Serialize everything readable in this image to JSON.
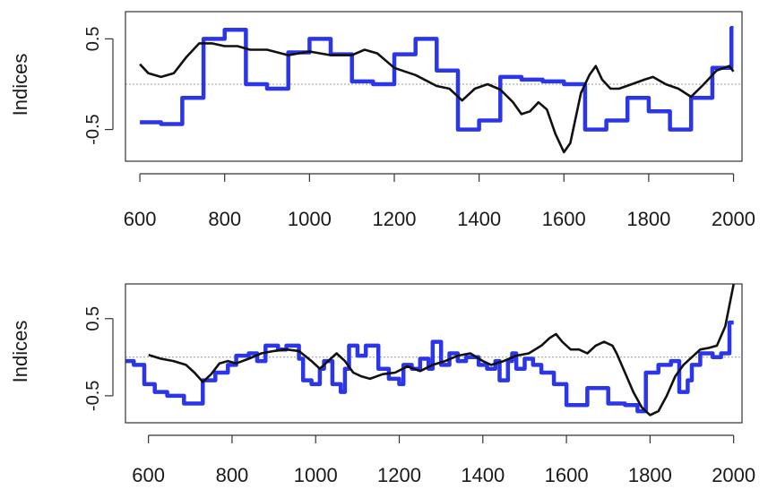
{
  "colors": {
    "blue_series": "#2b35ea",
    "black_series": "#111111",
    "zero_line": "#9a9a9a",
    "frame": "#333333"
  },
  "chart_data": [
    {
      "type": "line",
      "ylabel": "Indices",
      "xlim": [
        566,
        2020
      ],
      "ylim": [
        -0.85,
        0.8
      ],
      "x_ticks": [
        600,
        800,
        1000,
        1200,
        1400,
        1600,
        1800,
        2000
      ],
      "y_ticks": [
        -0.5,
        0.5
      ],
      "y_tick_labels": [
        "-0.5",
        "0.5"
      ],
      "zero_line": true,
      "grid": false,
      "series": [
        {
          "style": "step",
          "color": "#2b35ea",
          "points": [
            [
              600,
              -0.42
            ],
            [
              650,
              -0.44
            ],
            [
              700,
              -0.15
            ],
            [
              750,
              0.5
            ],
            [
              800,
              0.6
            ],
            [
              850,
              0.0
            ],
            [
              900,
              -0.05
            ],
            [
              950,
              0.35
            ],
            [
              1000,
              0.5
            ],
            [
              1050,
              0.33
            ],
            [
              1100,
              0.03
            ],
            [
              1150,
              0.0
            ],
            [
              1200,
              0.33
            ],
            [
              1250,
              0.5
            ],
            [
              1300,
              0.15
            ],
            [
              1350,
              -0.5
            ],
            [
              1400,
              -0.4
            ],
            [
              1450,
              0.08
            ],
            [
              1500,
              0.05
            ],
            [
              1550,
              0.03
            ],
            [
              1600,
              0.0
            ],
            [
              1650,
              -0.5
            ],
            [
              1700,
              -0.4
            ],
            [
              1750,
              -0.15
            ],
            [
              1800,
              -0.3
            ],
            [
              1850,
              -0.5
            ],
            [
              1900,
              -0.15
            ],
            [
              1950,
              0.18
            ],
            [
              1995,
              0.62
            ],
            [
              2000,
              0.62
            ]
          ]
        },
        {
          "style": "smooth",
          "color": "#111111",
          "points": [
            [
              600,
              0.22
            ],
            [
              620,
              0.12
            ],
            [
              650,
              0.08
            ],
            [
              680,
              0.12
            ],
            [
              710,
              0.3
            ],
            [
              740,
              0.45
            ],
            [
              770,
              0.45
            ],
            [
              800,
              0.42
            ],
            [
              830,
              0.42
            ],
            [
              860,
              0.38
            ],
            [
              900,
              0.38
            ],
            [
              950,
              0.32
            ],
            [
              1000,
              0.36
            ],
            [
              1050,
              0.32
            ],
            [
              1100,
              0.32
            ],
            [
              1130,
              0.38
            ],
            [
              1160,
              0.34
            ],
            [
              1200,
              0.18
            ],
            [
              1250,
              0.1
            ],
            [
              1300,
              -0.02
            ],
            [
              1330,
              -0.05
            ],
            [
              1360,
              -0.18
            ],
            [
              1390,
              -0.05
            ],
            [
              1420,
              0.0
            ],
            [
              1450,
              -0.06
            ],
            [
              1480,
              -0.2
            ],
            [
              1500,
              -0.33
            ],
            [
              1520,
              -0.3
            ],
            [
              1540,
              -0.2
            ],
            [
              1560,
              -0.28
            ],
            [
              1580,
              -0.55
            ],
            [
              1600,
              -0.75
            ],
            [
              1615,
              -0.65
            ],
            [
              1640,
              -0.1
            ],
            [
              1660,
              0.1
            ],
            [
              1675,
              0.2
            ],
            [
              1690,
              0.05
            ],
            [
              1710,
              -0.05
            ],
            [
              1730,
              -0.05
            ],
            [
              1760,
              0.0
            ],
            [
              1790,
              0.05
            ],
            [
              1810,
              0.08
            ],
            [
              1840,
              0.0
            ],
            [
              1870,
              -0.05
            ],
            [
              1900,
              -0.14
            ],
            [
              1930,
              0.0
            ],
            [
              1960,
              0.15
            ],
            [
              1990,
              0.2
            ],
            [
              2000,
              0.14
            ]
          ]
        }
      ]
    },
    {
      "type": "line",
      "ylabel": "Indices",
      "xlim": [
        545,
        2020
      ],
      "ylim": [
        -0.85,
        0.95
      ],
      "x_ticks": [
        600,
        800,
        1000,
        1200,
        1400,
        1600,
        1800,
        2000
      ],
      "y_ticks": [
        -0.5,
        0.5
      ],
      "y_tick_labels": [
        "-0.5",
        "0.5"
      ],
      "zero_line": true,
      "grid": false,
      "series": [
        {
          "style": "step",
          "color": "#2b35ea",
          "points": [
            [
              545,
              -0.05
            ],
            [
              565,
              -0.1
            ],
            [
              590,
              -0.35
            ],
            [
              615,
              -0.45
            ],
            [
              645,
              -0.5
            ],
            [
              685,
              -0.6
            ],
            [
              730,
              -0.3
            ],
            [
              760,
              -0.2
            ],
            [
              790,
              -0.1
            ],
            [
              810,
              0.02
            ],
            [
              840,
              0.05
            ],
            [
              860,
              -0.05
            ],
            [
              880,
              0.15
            ],
            [
              910,
              0.1
            ],
            [
              930,
              0.15
            ],
            [
              960,
              -0.02
            ],
            [
              970,
              -0.3
            ],
            [
              990,
              -0.35
            ],
            [
              1010,
              -0.15
            ],
            [
              1020,
              -0.05
            ],
            [
              1040,
              -0.35
            ],
            [
              1060,
              -0.45
            ],
            [
              1070,
              -0.15
            ],
            [
              1080,
              0.15
            ],
            [
              1100,
              0.02
            ],
            [
              1120,
              0.15
            ],
            [
              1150,
              -0.15
            ],
            [
              1175,
              -0.28
            ],
            [
              1200,
              -0.35
            ],
            [
              1210,
              -0.1
            ],
            [
              1230,
              -0.15
            ],
            [
              1250,
              -0.02
            ],
            [
              1270,
              -0.15
            ],
            [
              1280,
              0.2
            ],
            [
              1300,
              -0.1
            ],
            [
              1320,
              0.05
            ],
            [
              1340,
              -0.05
            ],
            [
              1360,
              0.0
            ],
            [
              1390,
              -0.1
            ],
            [
              1410,
              -0.15
            ],
            [
              1430,
              -0.05
            ],
            [
              1440,
              -0.3
            ],
            [
              1460,
              -0.05
            ],
            [
              1470,
              0.05
            ],
            [
              1480,
              -0.15
            ],
            [
              1500,
              -0.02
            ],
            [
              1520,
              -0.1
            ],
            [
              1540,
              -0.2
            ],
            [
              1570,
              -0.35
            ],
            [
              1600,
              -0.62
            ],
            [
              1650,
              -0.4
            ],
            [
              1700,
              -0.6
            ],
            [
              1740,
              -0.62
            ],
            [
              1770,
              -0.7
            ],
            [
              1790,
              -0.2
            ],
            [
              1820,
              -0.1
            ],
            [
              1850,
              -0.05
            ],
            [
              1870,
              -0.45
            ],
            [
              1890,
              -0.3
            ],
            [
              1900,
              -0.1
            ],
            [
              1920,
              0.05
            ],
            [
              1950,
              0.0
            ],
            [
              1970,
              0.05
            ],
            [
              1990,
              0.45
            ],
            [
              2000,
              0.45
            ]
          ]
        },
        {
          "style": "smooth",
          "color": "#111111",
          "points": [
            [
              600,
              0.03
            ],
            [
              630,
              -0.02
            ],
            [
              660,
              -0.05
            ],
            [
              690,
              -0.1
            ],
            [
              710,
              -0.2
            ],
            [
              730,
              -0.32
            ],
            [
              750,
              -0.22
            ],
            [
              770,
              -0.08
            ],
            [
              790,
              -0.05
            ],
            [
              810,
              -0.08
            ],
            [
              840,
              -0.02
            ],
            [
              870,
              0.05
            ],
            [
              900,
              0.08
            ],
            [
              930,
              0.1
            ],
            [
              960,
              0.08
            ],
            [
              990,
              -0.05
            ],
            [
              1010,
              -0.15
            ],
            [
              1030,
              -0.05
            ],
            [
              1050,
              0.05
            ],
            [
              1070,
              -0.05
            ],
            [
              1090,
              -0.2
            ],
            [
              1110,
              -0.25
            ],
            [
              1130,
              -0.28
            ],
            [
              1160,
              -0.22
            ],
            [
              1190,
              -0.2
            ],
            [
              1220,
              -0.12
            ],
            [
              1250,
              -0.18
            ],
            [
              1280,
              -0.1
            ],
            [
              1310,
              -0.05
            ],
            [
              1340,
              0.02
            ],
            [
              1370,
              0.05
            ],
            [
              1400,
              -0.05
            ],
            [
              1420,
              -0.1
            ],
            [
              1450,
              -0.05
            ],
            [
              1480,
              0.02
            ],
            [
              1510,
              0.05
            ],
            [
              1540,
              0.15
            ],
            [
              1560,
              0.25
            ],
            [
              1575,
              0.3
            ],
            [
              1590,
              0.2
            ],
            [
              1610,
              0.1
            ],
            [
              1630,
              0.1
            ],
            [
              1650,
              0.05
            ],
            [
              1670,
              0.15
            ],
            [
              1690,
              0.2
            ],
            [
              1710,
              0.15
            ],
            [
              1720,
              0.05
            ],
            [
              1740,
              -0.2
            ],
            [
              1760,
              -0.45
            ],
            [
              1780,
              -0.65
            ],
            [
              1800,
              -0.75
            ],
            [
              1820,
              -0.7
            ],
            [
              1840,
              -0.5
            ],
            [
              1860,
              -0.25
            ],
            [
              1880,
              -0.1
            ],
            [
              1900,
              0.0
            ],
            [
              1920,
              0.1
            ],
            [
              1940,
              0.12
            ],
            [
              1960,
              0.15
            ],
            [
              1980,
              0.4
            ],
            [
              2000,
              0.95
            ]
          ]
        }
      ]
    }
  ]
}
